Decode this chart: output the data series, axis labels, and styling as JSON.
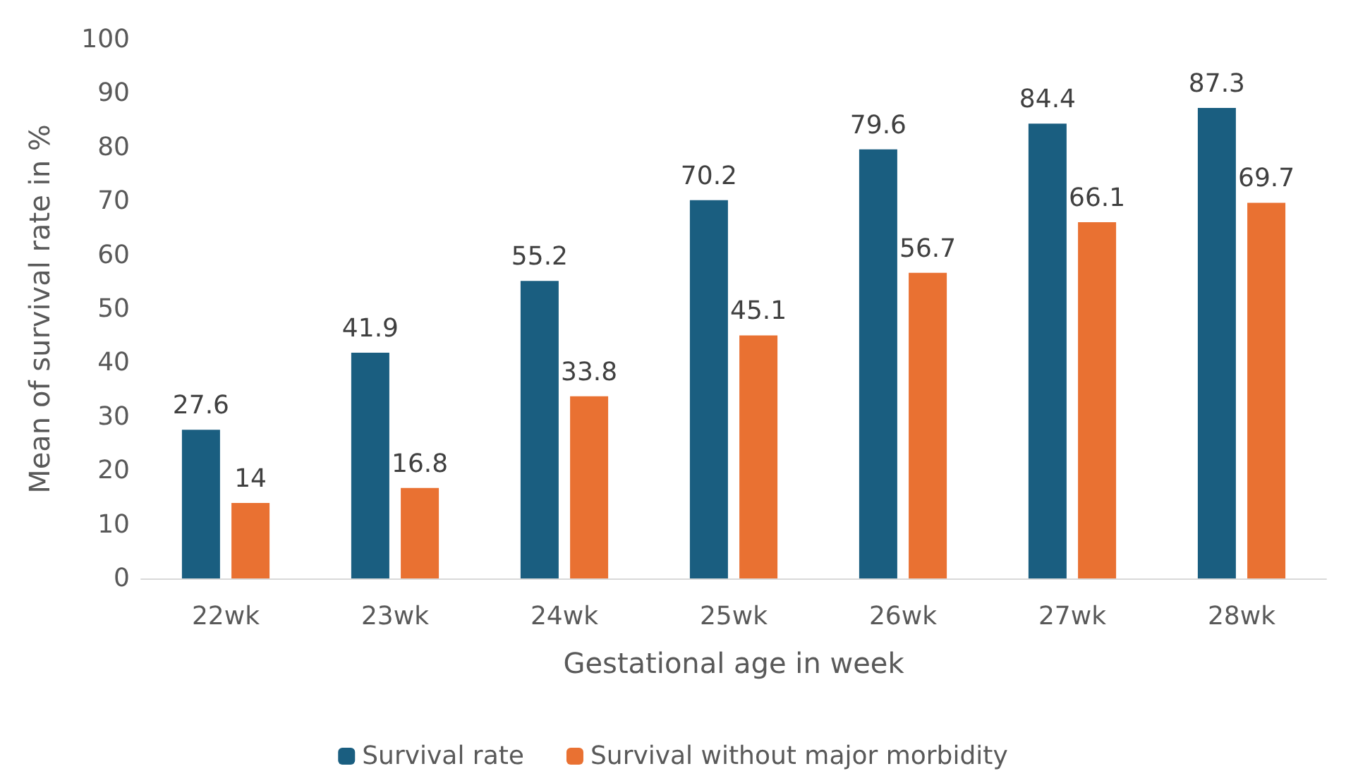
{
  "chart_data": {
    "type": "bar",
    "xlabel": "Gestational age in week",
    "ylabel": "Mean of survival rate in %",
    "categories": [
      "22wk",
      "23wk",
      "24wk",
      "25wk",
      "26wk",
      "27wk",
      "28wk"
    ],
    "series": [
      {
        "name": "Survival rate",
        "color": "#1a5e80",
        "values": [
          27.6,
          41.9,
          55.2,
          70.2,
          79.6,
          84.4,
          87.3
        ]
      },
      {
        "name": "Survival without major morbidity",
        "color": "#e97132",
        "values": [
          14,
          16.8,
          33.8,
          45.1,
          56.7,
          66.1,
          69.7
        ]
      }
    ],
    "ylim": [
      0,
      100
    ],
    "yticks": [
      0,
      10,
      20,
      30,
      40,
      50,
      60,
      70,
      80,
      90,
      100
    ],
    "grid": false,
    "legend": "bottom",
    "data_labels": true
  }
}
